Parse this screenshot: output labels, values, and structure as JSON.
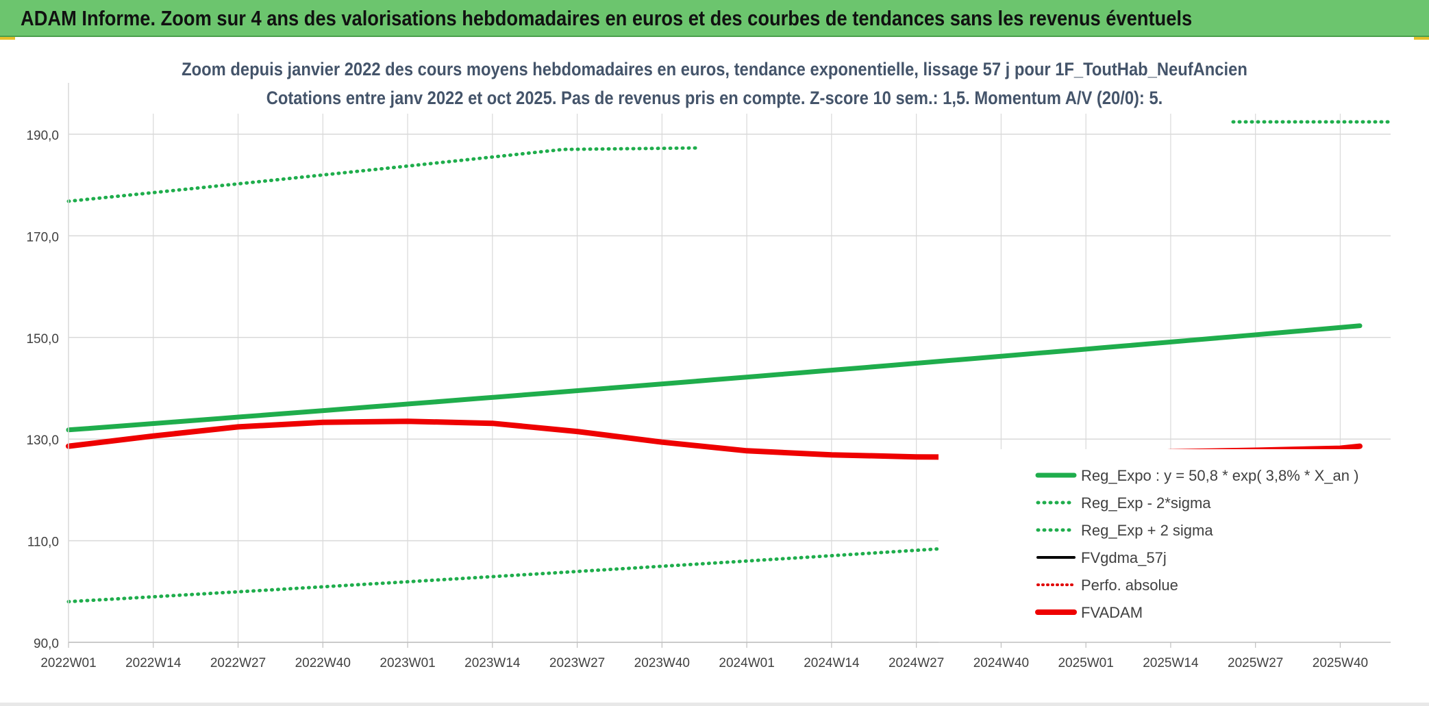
{
  "banner": {
    "title": "ADAM Informe. Zoom sur 4 ans des valorisations hebdomadaires en euros et des courbes de tendances sans les revenus éventuels"
  },
  "colors": {
    "banner_bg": "#6cc56e",
    "trend": "#1fad4c",
    "sigma": "#1fad4c",
    "fvgdma": "#000000",
    "perfo": "#e00000",
    "fvadam": "#ee0000",
    "grid": "#d9d9d9",
    "tick_text": "#404040"
  },
  "chart_data": {
    "type": "line",
    "title": "Zoom depuis janvier 2022 des cours moyens hebdomadaires en euros, tendance exponentielle, lissage 57 j pour 1F_ToutHab_NeufAncien",
    "subtitle": "Cotations entre janv 2022 et oct 2025. Pas de revenus pris en compte. Z-score 10 sem.: 1,5. Momentum A/V (20/0): 5.",
    "x_labels": [
      "2022W01",
      "2022W14",
      "2022W27",
      "2022W40",
      "2023W01",
      "2023W14",
      "2023W27",
      "2023W40",
      "2024W01",
      "2024W14",
      "2024W27",
      "2024W40",
      "2025W01",
      "2025W14",
      "2025W27",
      "2025W40"
    ],
    "y_ticks": [
      "90,0",
      "110,0",
      "130,0",
      "150,0",
      "170,0",
      "190,0"
    ],
    "ylim": [
      90,
      200
    ],
    "grid": true,
    "legend_position": "bottom-right",
    "series": [
      {
        "name": "Reg_Expo : y = 50,8 * exp( 3,8% *  X_an )",
        "style": "solid-thick",
        "x": [
          0,
          198
        ],
        "y": [
          131.8,
          152.3
        ]
      },
      {
        "name": "Reg_Exp - 2*sigma",
        "style": "dotted",
        "x": [
          0,
          198
        ],
        "y": [
          98.0,
          113.8
        ]
      },
      {
        "name": "Reg_Exp + 2 sigma",
        "style": "dotted",
        "x": [
          0,
          198
        ],
        "y": [
          176.8,
          204.7
        ]
      },
      {
        "name": "FVgdma_57j",
        "style": "solid",
        "x": [
          0,
          13,
          26,
          39,
          52,
          65,
          78,
          91,
          104,
          117,
          130,
          143,
          156,
          169,
          182,
          195,
          198
        ],
        "y": [
          128.6,
          130.6,
          132.4,
          133.2,
          133.4,
          133.0,
          131.4,
          129.4,
          127.6,
          126.8,
          126.4,
          126.3,
          126.5,
          127.4,
          127.7,
          128.1,
          128.5
        ]
      },
      {
        "name": "Perfo. absolue",
        "style": "dotted-red",
        "x": [],
        "y": []
      },
      {
        "name": "FVADAM",
        "style": "solid-thick-red",
        "x": [
          0,
          13,
          26,
          39,
          52,
          65,
          78,
          91,
          104,
          117,
          130,
          143,
          156,
          169,
          182,
          195,
          198
        ],
        "y": [
          128.6,
          130.6,
          132.4,
          133.3,
          133.5,
          133.1,
          131.5,
          129.4,
          127.7,
          126.9,
          126.5,
          126.4,
          126.6,
          127.5,
          127.8,
          128.2,
          128.6
        ]
      }
    ]
  }
}
